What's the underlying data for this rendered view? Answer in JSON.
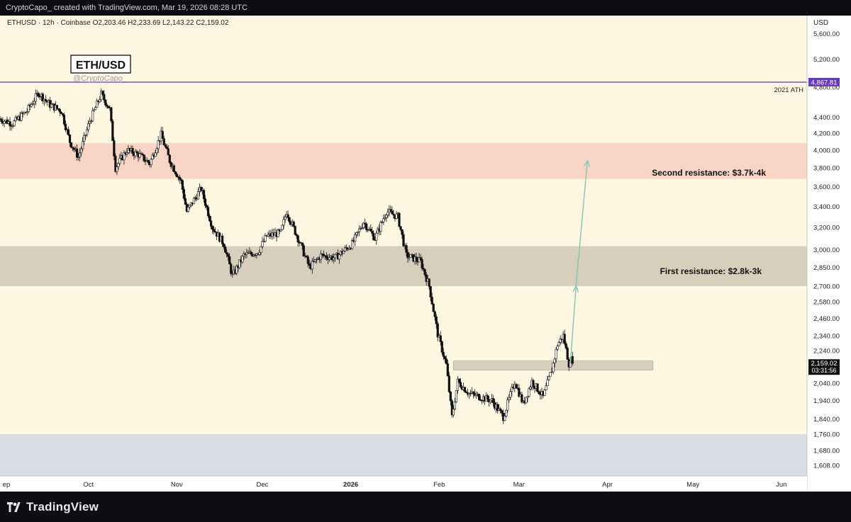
{
  "header": {
    "attribution": "CryptoCapo_  created with TradingView.com, Mar 19, 2026 08:28 UTC",
    "ohlc_line": "ETHUSD · 12h · Coinbase  O2,203.46  H2,233.69  L2,143.22  C2,159.02"
  },
  "axis": {
    "currency": "USD",
    "price_ticks": [
      "5,600.00",
      "5,200.00",
      "4,800.00",
      "4,400.00",
      "4,200.00",
      "4,000.00",
      "3,800.00",
      "3,600.00",
      "3,400.00",
      "3,200.00",
      "3,000.00",
      "2,850.00",
      "2,700.00",
      "2,580.00",
      "2,460.00",
      "2,340.00",
      "2,240.00",
      "2,040.00",
      "1,940.00",
      "1,840.00",
      "1,760.00",
      "1,680.00",
      "1,608.00"
    ],
    "time_ticks": [
      "ep",
      "Oct",
      "Nov",
      "Dec",
      "2026",
      "Feb",
      "Mar",
      "Apr",
      "May",
      "Jun"
    ],
    "bold_time_tick": "2026"
  },
  "overlay": {
    "logo_text": "ETH/USD",
    "handle": "@CryptoCapo_",
    "ath_label": "2021 ATH",
    "ath_value": "4,867.81",
    "last_price": "2,159.02",
    "countdown": "03:31:56",
    "zone_second_label": "Second resistance: $3.7k-4k",
    "zone_first_label": "First resistance: $2.8k-3k"
  },
  "footer": {
    "brand": "TradingView"
  },
  "chart_data": {
    "type": "candlestick",
    "symbol": "ETHUSD",
    "interval": "12h",
    "exchange": "Coinbase",
    "last_bar": {
      "open": 2203.46,
      "high": 2233.69,
      "low": 2143.22,
      "close": 2159.02
    },
    "y_scale": "log",
    "ylim": [
      1560,
      5900
    ],
    "x_range": [
      "2025-08-31",
      "2026-06-10"
    ],
    "series_path": [
      {
        "date": "2025-08-31",
        "price": 4380
      },
      {
        "date": "2025-09-05",
        "price": 4320
      },
      {
        "date": "2025-09-10",
        "price": 4480
      },
      {
        "date": "2025-09-14",
        "price": 4720
      },
      {
        "date": "2025-09-18",
        "price": 4560
      },
      {
        "date": "2025-09-22",
        "price": 4480
      },
      {
        "date": "2025-09-25",
        "price": 4100
      },
      {
        "date": "2025-09-28",
        "price": 3920
      },
      {
        "date": "2025-10-02",
        "price": 4350
      },
      {
        "date": "2025-10-06",
        "price": 4700
      },
      {
        "date": "2025-10-09",
        "price": 4500
      },
      {
        "date": "2025-10-11",
        "price": 3800
      },
      {
        "date": "2025-10-15",
        "price": 4000
      },
      {
        "date": "2025-10-19",
        "price": 3950
      },
      {
        "date": "2025-10-23",
        "price": 3850
      },
      {
        "date": "2025-10-27",
        "price": 4180
      },
      {
        "date": "2025-10-30",
        "price": 3880
      },
      {
        "date": "2025-11-03",
        "price": 3650
      },
      {
        "date": "2025-11-05",
        "price": 3350
      },
      {
        "date": "2025-11-10",
        "price": 3580
      },
      {
        "date": "2025-11-14",
        "price": 3200
      },
      {
        "date": "2025-11-18",
        "price": 3050
      },
      {
        "date": "2025-11-21",
        "price": 2780
      },
      {
        "date": "2025-11-25",
        "price": 2950
      },
      {
        "date": "2025-11-30",
        "price": 2980
      },
      {
        "date": "2025-12-03",
        "price": 3120
      },
      {
        "date": "2025-12-08",
        "price": 3150
      },
      {
        "date": "2025-12-10",
        "price": 3350
      },
      {
        "date": "2025-12-14",
        "price": 3100
      },
      {
        "date": "2025-12-18",
        "price": 2850
      },
      {
        "date": "2025-12-22",
        "price": 2950
      },
      {
        "date": "2025-12-27",
        "price": 2930
      },
      {
        "date": "2026-01-02",
        "price": 3050
      },
      {
        "date": "2026-01-06",
        "price": 3250
      },
      {
        "date": "2026-01-10",
        "price": 3100
      },
      {
        "date": "2026-01-14",
        "price": 3350
      },
      {
        "date": "2026-01-18",
        "price": 3300
      },
      {
        "date": "2026-01-21",
        "price": 2950
      },
      {
        "date": "2026-01-26",
        "price": 2900
      },
      {
        "date": "2026-01-29",
        "price": 2700
      },
      {
        "date": "2026-02-01",
        "price": 2350
      },
      {
        "date": "2026-02-04",
        "price": 2150
      },
      {
        "date": "2026-02-06",
        "price": 1850
      },
      {
        "date": "2026-02-08",
        "price": 2050
      },
      {
        "date": "2026-02-12",
        "price": 1980
      },
      {
        "date": "2026-02-16",
        "price": 1960
      },
      {
        "date": "2026-02-20",
        "price": 1940
      },
      {
        "date": "2026-02-24",
        "price": 1850
      },
      {
        "date": "2026-02-28",
        "price": 2050
      },
      {
        "date": "2026-03-03",
        "price": 1920
      },
      {
        "date": "2026-03-06",
        "price": 2050
      },
      {
        "date": "2026-03-10",
        "price": 1960
      },
      {
        "date": "2026-03-13",
        "price": 2120
      },
      {
        "date": "2026-03-15",
        "price": 2280
      },
      {
        "date": "2026-03-17",
        "price": 2340
      },
      {
        "date": "2026-03-19",
        "price": 2159
      }
    ],
    "horizontal_lines": [
      {
        "price": 4867.81,
        "label": "2021 ATH",
        "color": "#673ab7"
      }
    ],
    "zones": [
      {
        "label": "Second resistance: $3.7k-4k",
        "from": 3680,
        "to": 4080,
        "color": "#f8d5c5"
      },
      {
        "label": "First resistance: $2.8k-3k",
        "from": 2700,
        "to": 3030,
        "color": "#d7cebb"
      },
      {
        "label": "",
        "from": 1560,
        "to": 1760,
        "color": "#d8dde3"
      }
    ],
    "support_box": {
      "from_date": "2026-02-06",
      "to_date": "2026-04-17",
      "price_low": 2118,
      "price_high": 2175,
      "color": "#d7cebb"
    },
    "projection": [
      {
        "date": "2026-03-19",
        "price": 2159
      },
      {
        "date": "2026-03-21",
        "price": 2700
      },
      {
        "date": "2026-03-25",
        "price": 3880
      }
    ],
    "colors": {
      "background": "#fdf6e1",
      "candle_up": "#ffffff",
      "candle_down": "#111111",
      "wick": "#111111",
      "projection_arrow": "#7fc7b6",
      "ath_line": "#673ab7"
    }
  }
}
